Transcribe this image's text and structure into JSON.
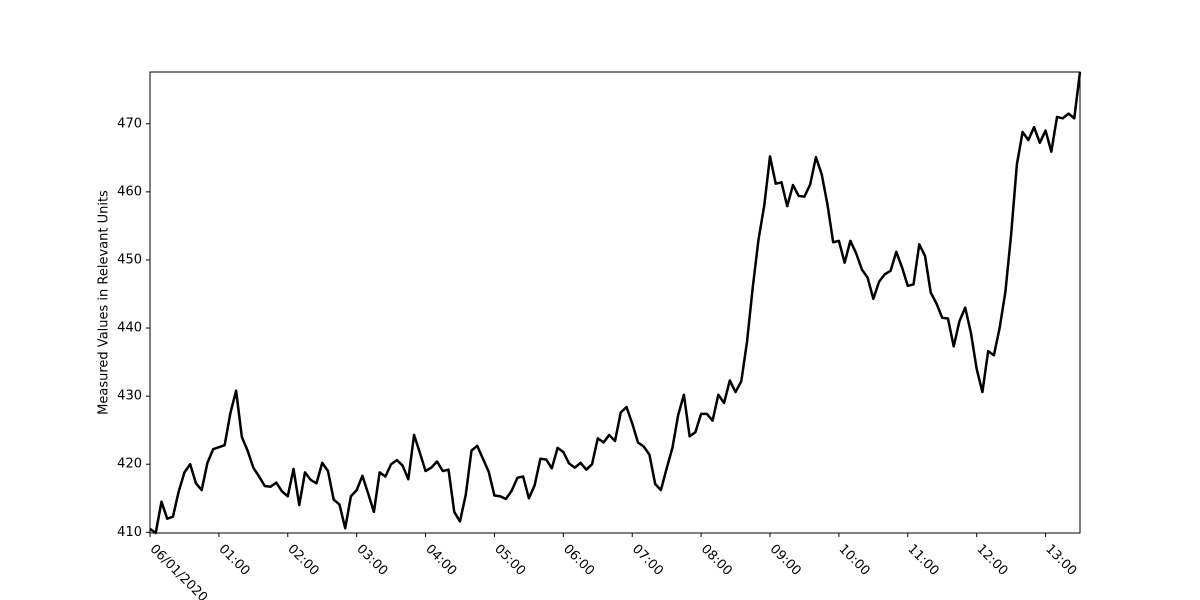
{
  "chart_data": {
    "type": "line",
    "y_label": "Measured Values in Relevant Units",
    "x": [
      "00:00",
      "00:05",
      "00:10",
      "00:15",
      "00:20",
      "00:25",
      "00:30",
      "00:35",
      "00:40",
      "00:45",
      "00:50",
      "00:55",
      "01:00",
      "01:05",
      "01:10",
      "01:15",
      "01:20",
      "01:25",
      "01:30",
      "01:35",
      "01:40",
      "01:45",
      "01:50",
      "01:55",
      "02:00",
      "02:05",
      "02:10",
      "02:15",
      "02:20",
      "02:25",
      "02:30",
      "02:35",
      "02:40",
      "02:45",
      "02:50",
      "02:55",
      "03:00",
      "03:05",
      "03:10",
      "03:15",
      "03:20",
      "03:25",
      "03:30",
      "03:35",
      "03:40",
      "03:45",
      "03:50",
      "03:55",
      "04:00",
      "04:05",
      "04:10",
      "04:15",
      "04:20",
      "04:25",
      "04:30",
      "04:35",
      "04:40",
      "04:45",
      "04:50",
      "04:55",
      "05:00",
      "05:05",
      "05:10",
      "05:15",
      "05:20",
      "05:25",
      "05:30",
      "05:35",
      "05:40",
      "05:45",
      "05:50",
      "05:55",
      "06:00",
      "06:05",
      "06:10",
      "06:15",
      "06:20",
      "06:25",
      "06:30",
      "06:35",
      "06:40",
      "06:45",
      "06:50",
      "06:55",
      "07:00",
      "07:05",
      "07:10",
      "07:15",
      "07:20",
      "07:25",
      "07:30",
      "07:35",
      "07:40",
      "07:45",
      "07:50",
      "07:55",
      "08:00",
      "08:05",
      "08:10",
      "08:15",
      "08:20",
      "08:25",
      "08:30",
      "08:35",
      "08:40",
      "08:45",
      "08:50",
      "08:55",
      "09:00",
      "09:05",
      "09:10",
      "09:15",
      "09:20",
      "09:25",
      "09:30",
      "09:35",
      "09:40",
      "09:45",
      "09:50",
      "09:55",
      "10:00",
      "10:05",
      "10:10",
      "10:15",
      "10:20",
      "10:25",
      "10:30",
      "10:35",
      "10:40",
      "10:45",
      "10:50",
      "10:55",
      "11:00",
      "11:05",
      "11:10",
      "11:15",
      "11:20",
      "11:25",
      "11:30",
      "11:35",
      "11:40",
      "11:45",
      "11:50",
      "11:55",
      "12:00",
      "12:05",
      "12:10",
      "12:15",
      "12:20",
      "12:25",
      "12:30",
      "12:35",
      "12:40",
      "12:45",
      "12:50",
      "12:55",
      "13:00",
      "13:05",
      "13:10",
      "13:15",
      "13:20",
      "13:25",
      "13:30"
    ],
    "series": [
      {
        "color": "#000000",
        "values": [
          410.5,
          409.9,
          414.5,
          412,
          412.3,
          416,
          418.8,
          420,
          417.2,
          416.2,
          420.2,
          422.2,
          422.5,
          422.8,
          427.5,
          430.8,
          424,
          422,
          419.5,
          418.2,
          416.8,
          416.7,
          417.3,
          416,
          415.3,
          419.3,
          414,
          418.8,
          417.7,
          417.2,
          420.2,
          419,
          414.8,
          414.1,
          410.6,
          415.3,
          416.2,
          418.3,
          415.7,
          413,
          418.8,
          418.2,
          420,
          420.6,
          419.8,
          417.8,
          424.3,
          421.7,
          419,
          419.5,
          420.4,
          419,
          419.2,
          413,
          411.6,
          415.5,
          422,
          422.7,
          420.8,
          418.9,
          415.4,
          415.3,
          414.9,
          416.1,
          418,
          418.2,
          415,
          416.9,
          420.8,
          420.7,
          419.4,
          422.4,
          421.8,
          420.1,
          419.5,
          420.2,
          419.2,
          420,
          423.8,
          423.2,
          424.3,
          423.4,
          427.6,
          428.4,
          426,
          423.2,
          422.6,
          421.4,
          417.1,
          416.2,
          419.4,
          422.4,
          427.2,
          430.2,
          424.1,
          424.7,
          427.4,
          427.4,
          426.4,
          430.2,
          429,
          432.3,
          430.6,
          432.2,
          438,
          446,
          453,
          458,
          465.2,
          461.2,
          461.4,
          457.9,
          461,
          459.4,
          459.3,
          461.1,
          465.1,
          462.6,
          458.2,
          452.6,
          452.8,
          449.6,
          452.8,
          451,
          448.6,
          447.4,
          444.3,
          446.8,
          447.9,
          448.4,
          451.2,
          448.9,
          446.2,
          446.4,
          452.3,
          450.6,
          445.2,
          443.6,
          441.5,
          441.4,
          437.3,
          441,
          443,
          439.3,
          434,
          430.6,
          436.6,
          436,
          440,
          445.3,
          453.7,
          464,
          468.8,
          467.6,
          469.5,
          467.2,
          469,
          465.9,
          471,
          470.8,
          471.5,
          470.8,
          477.6
        ]
      }
    ],
    "xlim": [
      "00:00",
      "13:30"
    ],
    "xticks": [
      {
        "value": "00:00",
        "label": "06/01/2020"
      },
      "01:00",
      "02:00",
      "03:00",
      "04:00",
      "05:00",
      "06:00",
      "07:00",
      "08:00",
      "09:00",
      "10:00",
      "11:00",
      "12:00",
      "13:00"
    ],
    "ylim": [
      409.9,
      477.6
    ],
    "yticks": [
      410,
      420,
      430,
      440,
      450,
      460,
      470
    ],
    "grid": false
  }
}
